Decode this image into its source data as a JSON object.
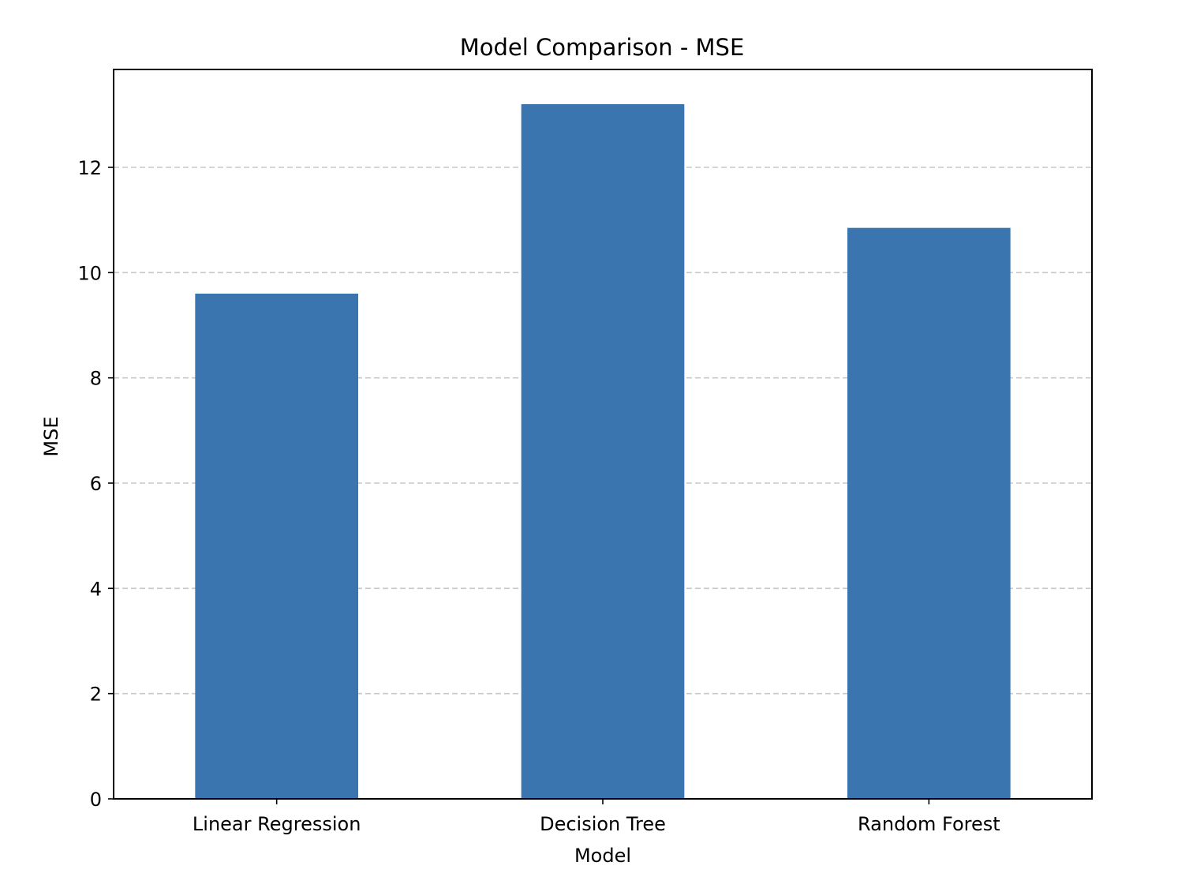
{
  "chart_data": {
    "type": "bar",
    "title": "Model Comparison - MSE",
    "xlabel": "Model",
    "ylabel": "MSE",
    "categories": [
      "Linear Regression",
      "Decision Tree",
      "Random Forest"
    ],
    "values": [
      9.6,
      13.2,
      10.85
    ],
    "ylim": [
      0,
      13.86
    ],
    "yticks": [
      0,
      2,
      4,
      6,
      8,
      10,
      12
    ],
    "grid": "y-dashed",
    "legend": "none",
    "colors": {
      "bar": "#3b75af",
      "grid": "#c8c8c8",
      "axis": "#000000"
    }
  }
}
